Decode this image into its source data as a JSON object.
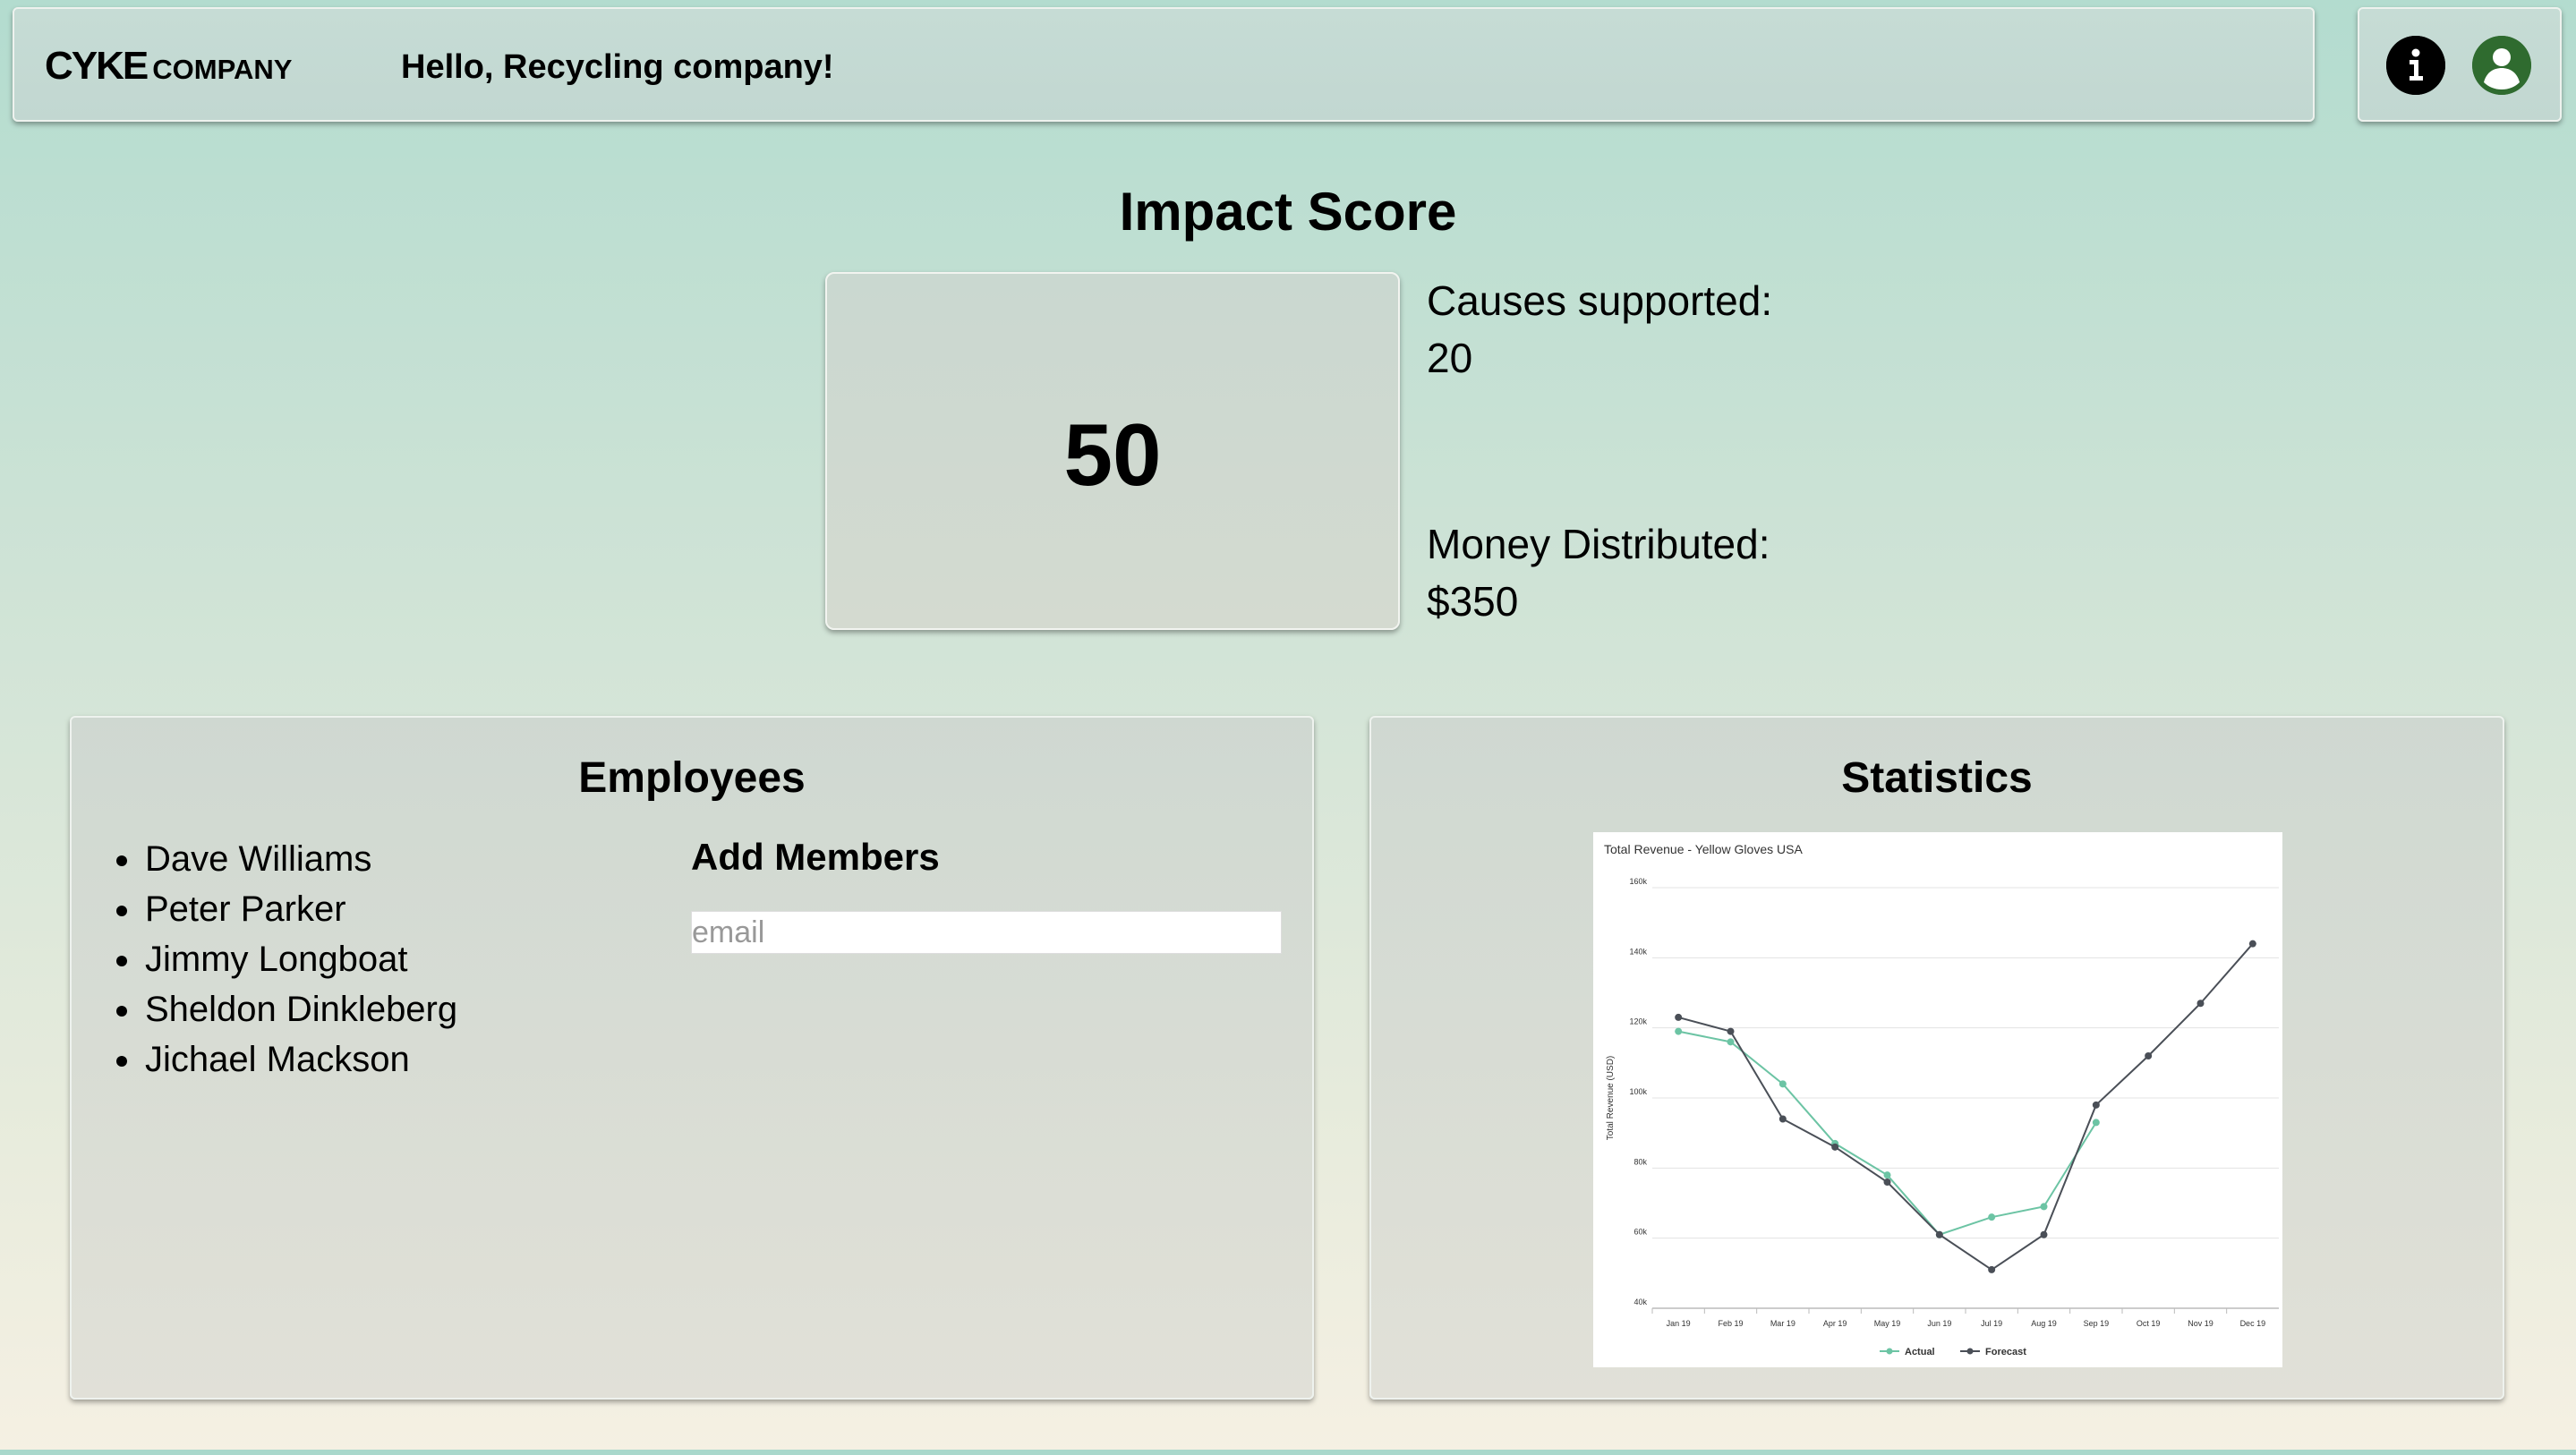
{
  "header": {
    "logo_main": "CYKE",
    "logo_sub": "COMPANY",
    "greeting": "Hello, Recycling company!",
    "icons": [
      "info-icon",
      "user-avatar-icon"
    ]
  },
  "impact": {
    "title": "Impact Score",
    "score": "50",
    "causes_label": "Causes supported:",
    "causes_value": "20",
    "money_label": "Money Distributed:",
    "money_value": "$350"
  },
  "employees": {
    "title": "Employees",
    "list": [
      "Dave Williams",
      "Peter Parker",
      "Jimmy Longboat",
      "Sheldon Dinkleberg",
      "Jichael Mackson"
    ],
    "add_title": "Add Members",
    "email_placeholder": "email"
  },
  "statistics": {
    "title": "Statistics"
  },
  "colors": {
    "actual": "#6cc4a4",
    "forecast": "#4a4f57",
    "avatar": "#2f6b2f"
  },
  "chart_data": {
    "type": "line",
    "title": "Total Revenue - Yellow Gloves USA",
    "ylabel": "Total Revenue (USD)",
    "xlabel": "",
    "categories": [
      "Jan 19",
      "Feb 19",
      "Mar 19",
      "Apr 19",
      "May 19",
      "Jun 19",
      "Jul 19",
      "Aug 19",
      "Sep 19",
      "Oct 19",
      "Nov 19",
      "Dec 19"
    ],
    "ylim": [
      40000,
      160000
    ],
    "yticks": [
      40000,
      60000,
      80000,
      100000,
      120000,
      140000,
      160000
    ],
    "ytick_labels": [
      "40k",
      "60k",
      "80k",
      "100k",
      "120k",
      "140k",
      "160k"
    ],
    "grid": true,
    "legend": "bottom",
    "series": [
      {
        "name": "Actual",
        "color": "#6cc4a4",
        "values": [
          119000,
          116000,
          104000,
          87000,
          78000,
          61000,
          66000,
          69000,
          93000,
          null,
          null,
          null
        ]
      },
      {
        "name": "Forecast",
        "color": "#4a4f57",
        "values": [
          123000,
          119000,
          94000,
          86000,
          76000,
          61000,
          51000,
          61000,
          98000,
          112000,
          127000,
          144000
        ]
      }
    ]
  }
}
